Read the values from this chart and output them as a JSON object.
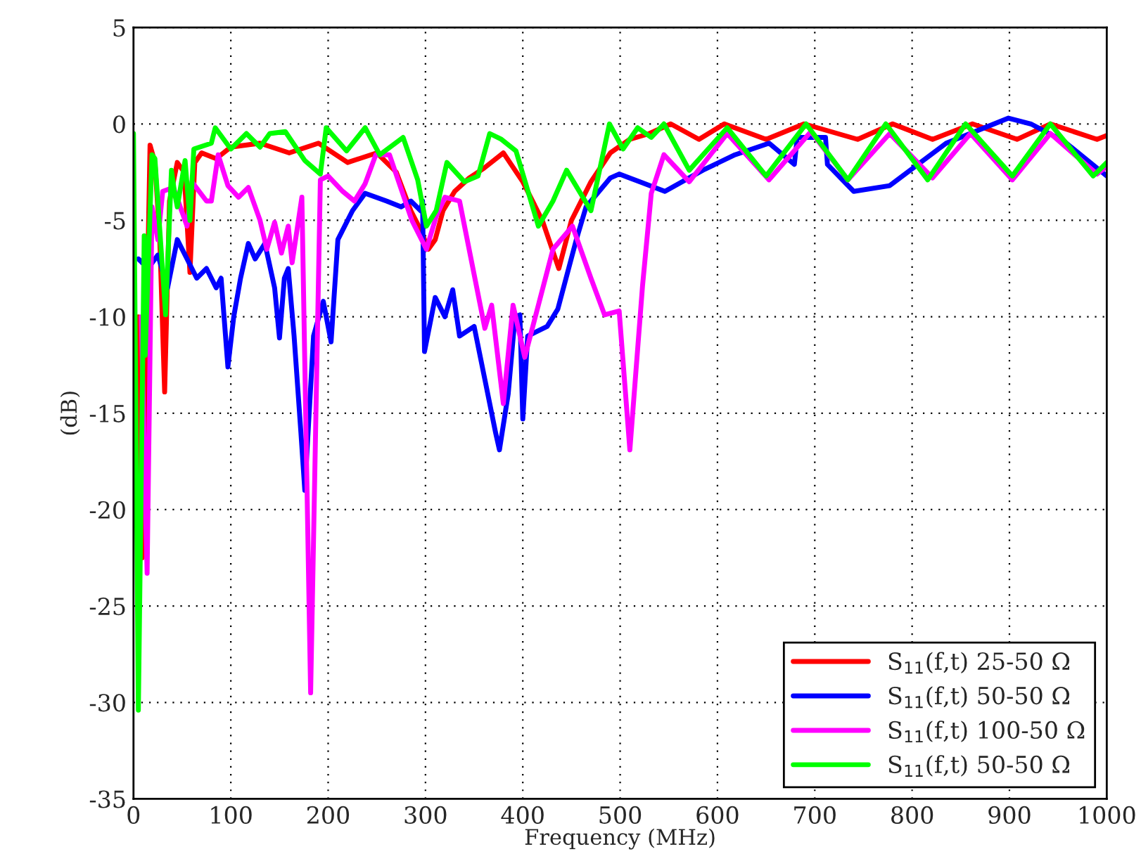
{
  "chart_data": {
    "type": "line",
    "xlabel": "Frequency (MHz)",
    "ylabel": "(dB)",
    "xlim": [
      0,
      1000
    ],
    "ylim": [
      -35,
      5
    ],
    "xticks": [
      0,
      100,
      200,
      300,
      400,
      500,
      600,
      700,
      800,
      900,
      1000
    ],
    "yticks": [
      -35,
      -30,
      -25,
      -20,
      -15,
      -10,
      -5,
      0,
      5
    ],
    "grid": true,
    "legend": "bottom right",
    "line_style": "solid",
    "marker": "none",
    "series": [
      {
        "name": "S$_{11}$(f,t) 25-50 Ω",
        "color": "#ff0000",
        "x": [
          5,
          9,
          17,
          22,
          27,
          32,
          37,
          45,
          52,
          58,
          63,
          70,
          85,
          100,
          130,
          160,
          190,
          220,
          250,
          270,
          285,
          295,
          303,
          310,
          318,
          330,
          345,
          360,
          380,
          400,
          420,
          437,
          450,
          470,
          490,
          510,
          530,
          552,
          581,
          607,
          650,
          689,
          744,
          780,
          821,
          862,
          908,
          942,
          990,
          1000
        ],
        "values": [
          -10,
          -22.5,
          -1.1,
          -2,
          -6,
          -13.9,
          -4,
          -2,
          -2.5,
          -7.7,
          -2,
          -1.5,
          -1.8,
          -1.2,
          -1,
          -1.5,
          -1,
          -2,
          -1.5,
          -2.5,
          -4.5,
          -5.5,
          -6.5,
          -6,
          -4.5,
          -3.5,
          -2.8,
          -2.3,
          -1.5,
          -3,
          -5,
          -7.5,
          -5,
          -3,
          -1.5,
          -0.8,
          -0.5,
          0,
          -0.8,
          0,
          -0.8,
          0,
          -0.8,
          0,
          -0.8,
          0,
          -0.8,
          0,
          -0.8,
          -0.6
        ]
      },
      {
        "name": "S$_{11}$(f,t) 50-50 Ω",
        "color": "#0000ff",
        "x": [
          5,
          15,
          25,
          35,
          45,
          55,
          65,
          75,
          85,
          90,
          97,
          103,
          110,
          118,
          125,
          135,
          145,
          150,
          155,
          159,
          165,
          172,
          176,
          185,
          195,
          203,
          210,
          225,
          238,
          260,
          275,
          285,
          295,
          297,
          299,
          310,
          320,
          328,
          335,
          350,
          360,
          372,
          376,
          385,
          392,
          397,
          400,
          405,
          425,
          436,
          455,
          465,
          490,
          499,
          520,
          546,
          585,
          618,
          653,
          679,
          682,
          711,
          713,
          740,
          777,
          835,
          899,
          922,
          956,
          1000
        ],
        "values": [
          -7,
          -7.5,
          -6.8,
          -8.5,
          -6,
          -7,
          -8,
          -7.5,
          -8.5,
          -8,
          -12.6,
          -10,
          -8,
          -6.2,
          -7,
          -6.2,
          -8.5,
          -11.1,
          -8,
          -7.5,
          -11,
          -16,
          -19,
          -11,
          -9.2,
          -11.3,
          -6,
          -4.5,
          -3.6,
          -4,
          -4.3,
          -4,
          -4.5,
          -4,
          -11.8,
          -9,
          -10,
          -8.6,
          -11,
          -10.5,
          -13,
          -16,
          -16.9,
          -14,
          -10,
          -9.9,
          -15.3,
          -11,
          -10.5,
          -9.6,
          -6,
          -4.3,
          -2.8,
          -2.6,
          -3,
          -3.5,
          -2.4,
          -1.6,
          -1,
          -2.1,
          -0.7,
          -0.7,
          -2.1,
          -3.5,
          -3.2,
          -1,
          0.3,
          0,
          -0.9,
          -2.7
        ]
      },
      {
        "name": "S$_{11}$(f,t) 100-50 Ω",
        "color": "#ff00ff",
        "x": [
          8,
          14,
          19,
          25,
          30,
          41,
          55,
          60,
          75,
          80,
          87,
          97,
          108,
          118,
          130,
          137,
          145,
          152,
          159,
          163,
          173,
          182,
          192,
          200,
          215,
          227,
          238,
          249,
          263,
          286,
          301,
          311,
          320,
          335,
          361,
          368,
          380,
          390,
          402,
          431,
          451,
          470,
          484,
          499,
          510,
          523,
          532,
          545,
          571,
          610,
          653,
          696,
          734,
          777,
          821,
          860,
          903,
          942,
          990,
          1000
        ],
        "values": [
          -10,
          -23.3,
          -4.3,
          -6,
          -3.5,
          -3.3,
          -5.3,
          -3,
          -4,
          -4,
          -1.6,
          -3.2,
          -3.8,
          -3.3,
          -5,
          -6.5,
          -5.1,
          -6.7,
          -5.3,
          -7.2,
          -3.8,
          -29.5,
          -2.9,
          -2.7,
          -3.5,
          -4,
          -3.1,
          -1.6,
          -1.6,
          -5,
          -6.5,
          -4.8,
          -3.8,
          -4,
          -10.6,
          -9.4,
          -14.5,
          -9.4,
          -12.1,
          -6.5,
          -5.3,
          -8,
          -9.9,
          -9.7,
          -16.9,
          -8.4,
          -3.6,
          -1.6,
          -3,
          -0.5,
          -2.9,
          -0.4,
          -2.9,
          -0.5,
          -2.8,
          -0.5,
          -2.9,
          -0.5,
          -2.6,
          -2.2
        ]
      },
      {
        "name": "S$_{11}$(f,t) 50-50 Ω",
        "color": "#00ff00",
        "x": [
          0,
          5,
          10,
          11,
          12,
          19,
          22,
          33,
          39,
          42,
          45,
          53,
          58,
          62,
          80,
          84,
          100,
          116,
          130,
          140,
          156,
          176,
          192,
          198,
          219,
          238,
          253,
          277,
          292,
          301,
          311,
          322,
          340,
          354,
          366,
          378,
          393,
          416,
          431,
          445,
          470,
          489,
          503,
          518,
          532,
          545,
          571,
          610,
          650,
          691,
          734,
          773,
          816,
          855,
          903,
          942,
          986,
          1000
        ],
        "values": [
          -0.5,
          -30.4,
          -10,
          -5.8,
          -12,
          -1.6,
          -1.8,
          -9.9,
          -2.4,
          -3.5,
          -4.3,
          -1.9,
          -5,
          -1.3,
          -1,
          -0.2,
          -1.3,
          -0.5,
          -1.2,
          -0.5,
          -0.4,
          -1.9,
          -2.6,
          -0.2,
          -1.4,
          -0.2,
          -1.6,
          -0.7,
          -2.9,
          -5.3,
          -4.5,
          -2,
          -3,
          -2.7,
          -0.5,
          -0.8,
          -1.4,
          -5.3,
          -4,
          -2.4,
          -4.5,
          0,
          -1.3,
          -0.2,
          -0.7,
          0,
          -2.4,
          -0.2,
          -2.7,
          0,
          -2.9,
          0,
          -2.9,
          0,
          -2.7,
          0,
          -2.7,
          -2
        ]
      }
    ]
  }
}
